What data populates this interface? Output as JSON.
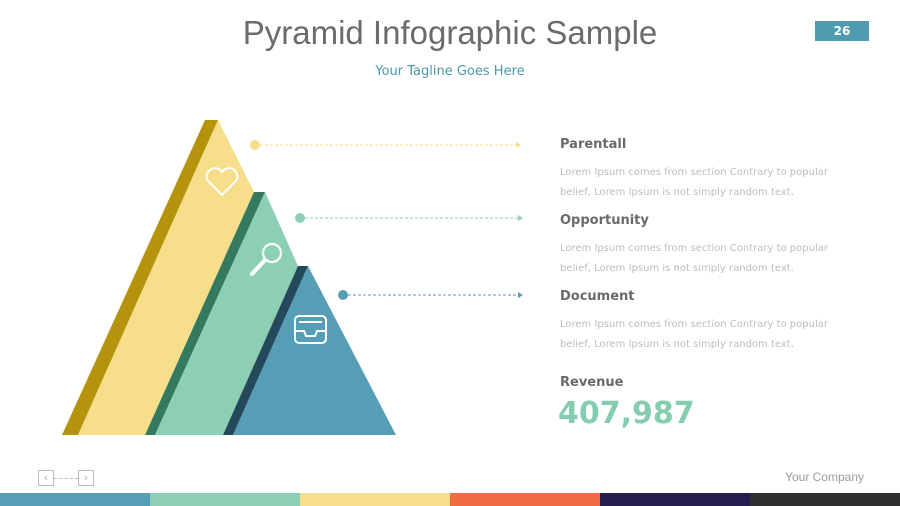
{
  "slide": {
    "title": "Pyramid Infographic Sample",
    "tagline": "Your Tagline Goes Here",
    "page_number": "26",
    "company": "Your Company"
  },
  "items": [
    {
      "title": "Parentall",
      "text": "Lorem Ipsum comes from section Contrary to popular belief, Lorem Ipsum is not simply random text.",
      "icon": "heart-icon",
      "color": "#f6de8a"
    },
    {
      "title": "Opportunity",
      "text": "Lorem Ipsum comes from section Contrary to popular belief, Lorem Ipsum is not simply random text.",
      "icon": "search-icon",
      "color": "#8dcfb4"
    },
    {
      "title": "Document",
      "text": "Lorem Ipsum comes from section Contrary to popular belief, Lorem Ipsum is not simply random text.",
      "icon": "inbox-tray-icon",
      "color": "#559eb5"
    }
  ],
  "revenue": {
    "label": "Revenue",
    "value": "407,987"
  },
  "nav": {
    "prev": "‹",
    "next": "›"
  },
  "footer_colors": [
    "#559eb5",
    "#8dcfb4",
    "#f6de8a",
    "#f26b43",
    "#241e4e",
    "#2f2f2f"
  ]
}
